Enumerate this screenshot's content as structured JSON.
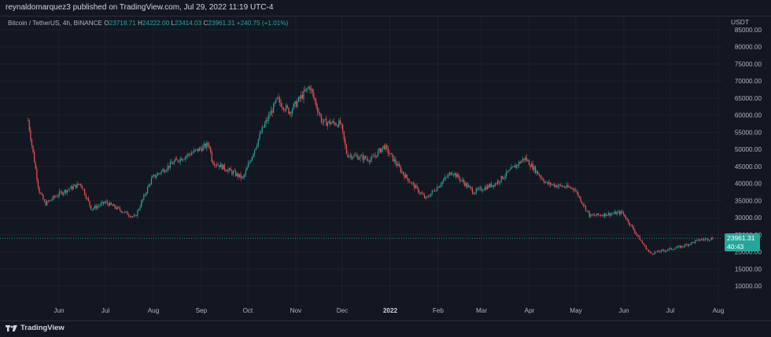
{
  "header": {
    "publisher_line": "reynaldomarquez3 published on TradingView.com, Jul 29, 2022 11:19 UTC-4"
  },
  "legend": {
    "symbol": "Bitcoin / TetherUS, 4h, BINANCE",
    "open_label": "O",
    "open": "23718.71",
    "high_label": "H",
    "high": "24222.00",
    "low_label": "L",
    "low": "23414.03",
    "close_label": "C",
    "close": "23961.31",
    "change": "+240.75 (+1.01%)"
  },
  "axis": {
    "currency": "USDT",
    "y_ticks": [
      "85000.00",
      "80000.00",
      "75000.00",
      "70000.00",
      "65000.00",
      "60000.00",
      "55000.00",
      "50000.00",
      "45000.00",
      "40000.00",
      "35000.00",
      "30000.00",
      "25000.00",
      "20000.00",
      "15000.00",
      "10000.00"
    ],
    "y_values": [
      85000,
      80000,
      75000,
      70000,
      65000,
      60000,
      55000,
      50000,
      45000,
      40000,
      35000,
      30000,
      25000,
      20000,
      15000,
      10000
    ],
    "x_ticks": [
      "Jun",
      "Jul",
      "Aug",
      "Sep",
      "Oct",
      "Nov",
      "Dec",
      "2022",
      "Feb",
      "Mar",
      "Apr",
      "May",
      "Jun",
      "Jul",
      "Aug"
    ],
    "x_year_label": "2022"
  },
  "price_tag": {
    "price": "23961.31",
    "countdown": "40:43"
  },
  "footer": {
    "brand": "TradingView"
  },
  "colors": {
    "background": "#131722",
    "up": "#26a69a",
    "down": "#ef5350",
    "grid": "#1e222d",
    "price_line": "#26a69a"
  },
  "chart_data": {
    "type": "candlestick",
    "y_range": [
      5000,
      87500
    ],
    "months": [
      "May 2021",
      "Jun",
      "Jul",
      "Aug",
      "Sep",
      "Oct",
      "Nov",
      "Dec",
      "Jan 2022",
      "Feb",
      "Mar",
      "Apr",
      "May",
      "Jun",
      "Jul",
      "Aug"
    ],
    "price_path": [
      {
        "date": "2021-05-12",
        "close": 58500
      },
      {
        "date": "2021-05-19",
        "close": 38000
      },
      {
        "date": "2021-05-23",
        "close": 34000
      },
      {
        "date": "2021-06-01",
        "close": 37000
      },
      {
        "date": "2021-06-15",
        "close": 40000
      },
      {
        "date": "2021-06-22",
        "close": 32500
      },
      {
        "date": "2021-07-01",
        "close": 34500
      },
      {
        "date": "2021-07-20",
        "close": 30000
      },
      {
        "date": "2021-07-31",
        "close": 41500
      },
      {
        "date": "2021-08-15",
        "close": 46500
      },
      {
        "date": "2021-09-06",
        "close": 51500
      },
      {
        "date": "2021-09-08",
        "close": 46500
      },
      {
        "date": "2021-09-28",
        "close": 41500
      },
      {
        "date": "2021-10-10",
        "close": 55500
      },
      {
        "date": "2021-10-20",
        "close": 64500
      },
      {
        "date": "2021-10-28",
        "close": 61000
      },
      {
        "date": "2021-11-10",
        "close": 68500
      },
      {
        "date": "2021-11-18",
        "close": 58000
      },
      {
        "date": "2021-11-30",
        "close": 57500
      },
      {
        "date": "2021-12-04",
        "close": 48500
      },
      {
        "date": "2021-12-20",
        "close": 47000
      },
      {
        "date": "2021-12-28",
        "close": 51000
      },
      {
        "date": "2022-01-10",
        "close": 42500
      },
      {
        "date": "2022-01-24",
        "close": 35500
      },
      {
        "date": "2022-02-10",
        "close": 43500
      },
      {
        "date": "2022-02-24",
        "close": 37500
      },
      {
        "date": "2022-03-10",
        "close": 40000
      },
      {
        "date": "2022-03-29",
        "close": 47500
      },
      {
        "date": "2022-04-12",
        "close": 40000
      },
      {
        "date": "2022-04-30",
        "close": 38500
      },
      {
        "date": "2022-05-10",
        "close": 30500
      },
      {
        "date": "2022-05-31",
        "close": 31500
      },
      {
        "date": "2022-06-13",
        "close": 22500
      },
      {
        "date": "2022-06-18",
        "close": 19500
      },
      {
        "date": "2022-07-08",
        "close": 21500
      },
      {
        "date": "2022-07-20",
        "close": 23500
      },
      {
        "date": "2022-07-29",
        "close": 23961
      }
    ]
  }
}
